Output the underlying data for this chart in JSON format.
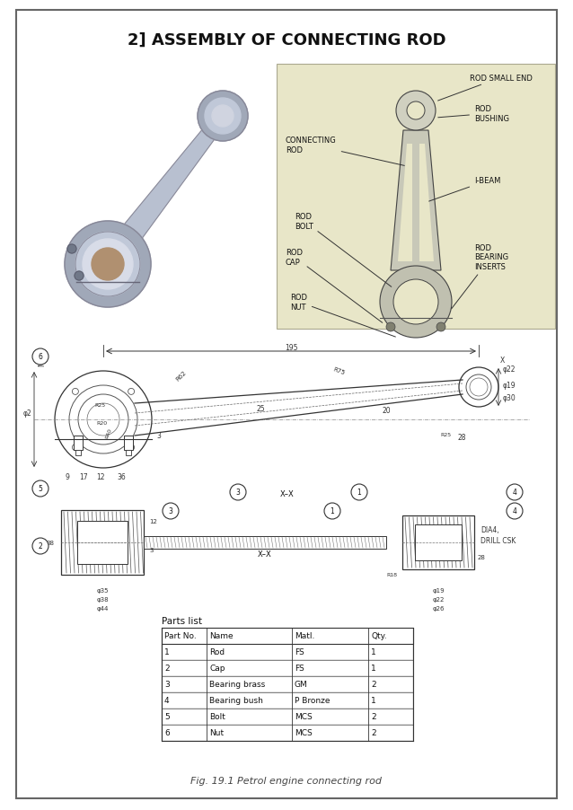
{
  "title": "2] ASSEMBLY OF CONNECTING ROD",
  "bg_color": "#ffffff",
  "diagram_bg": "#e8e6c8",
  "parts_list_title": "Parts list",
  "parts_headers": [
    "Part No.",
    "Name",
    "Matl.",
    "Qty."
  ],
  "parts_data": [
    [
      "1",
      "Rod",
      "FS",
      "1"
    ],
    [
      "2",
      "Cap",
      "FS",
      "1"
    ],
    [
      "3",
      "Bearing brass",
      "GM",
      "2"
    ],
    [
      "4",
      "Bearing bush",
      "P Bronze",
      "1"
    ],
    [
      "5",
      "Bolt",
      "MCS",
      "2"
    ],
    [
      "6",
      "Nut",
      "MCS",
      "2"
    ]
  ],
  "fig_caption": "Fig. 19.1 Petrol engine connecting rod",
  "label_color": "#111111",
  "line_color": "#333333",
  "hatch_color": "#555555"
}
